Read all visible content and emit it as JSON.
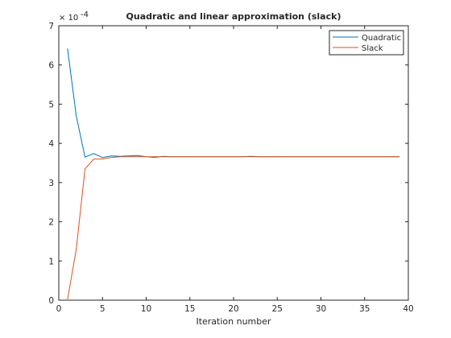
{
  "chart_data": {
    "type": "line",
    "title": "Quadratic and linear approximation (slack)",
    "xlabel": "Iteration number",
    "ylabel": "",
    "xlim": [
      0,
      40
    ],
    "ylim": [
      0,
      7
    ],
    "xticks": [
      0,
      5,
      10,
      15,
      20,
      25,
      30,
      35,
      40
    ],
    "yticks": [
      0,
      1,
      2,
      3,
      4,
      5,
      6,
      7
    ],
    "xtick_labels": [
      "0",
      "5",
      "10",
      "15",
      "20",
      "25",
      "30",
      "35",
      "40"
    ],
    "ytick_labels": [
      "0",
      "1",
      "2",
      "3",
      "4",
      "5",
      "6",
      "7"
    ],
    "y_exponent": {
      "base": "× 10",
      "power": "-4"
    },
    "grid": false,
    "legend_position": "top-right",
    "x": [
      1,
      2,
      3,
      4,
      5,
      6,
      7,
      8,
      9,
      10,
      11,
      12,
      13,
      14,
      15,
      16,
      17,
      18,
      19,
      20,
      21,
      22,
      23,
      24,
      25,
      26,
      27,
      28,
      29,
      30,
      31,
      32,
      33,
      34,
      35,
      36,
      37,
      38,
      39
    ],
    "series": [
      {
        "name": "Quadratic",
        "color": "#0072BD",
        "values": [
          6.42,
          4.7,
          3.65,
          3.74,
          3.64,
          3.68,
          3.67,
          3.68,
          3.69,
          3.66,
          3.64,
          3.67,
          3.66,
          3.66,
          3.66,
          3.66,
          3.66,
          3.66,
          3.66,
          3.66,
          3.66,
          3.67,
          3.66,
          3.66,
          3.66,
          3.66,
          3.66,
          3.66,
          3.66,
          3.66,
          3.66,
          3.66,
          3.66,
          3.66,
          3.66,
          3.66,
          3.66,
          3.66,
          3.66
        ]
      },
      {
        "name": "Slack",
        "color": "#D95319",
        "values": [
          0.02,
          1.3,
          3.35,
          3.6,
          3.6,
          3.64,
          3.66,
          3.66,
          3.66,
          3.66,
          3.66,
          3.66,
          3.66,
          3.66,
          3.66,
          3.66,
          3.66,
          3.66,
          3.66,
          3.66,
          3.66,
          3.66,
          3.66,
          3.66,
          3.66,
          3.66,
          3.66,
          3.66,
          3.66,
          3.66,
          3.66,
          3.66,
          3.66,
          3.66,
          3.66,
          3.66,
          3.66,
          3.66,
          3.66
        ]
      }
    ]
  }
}
